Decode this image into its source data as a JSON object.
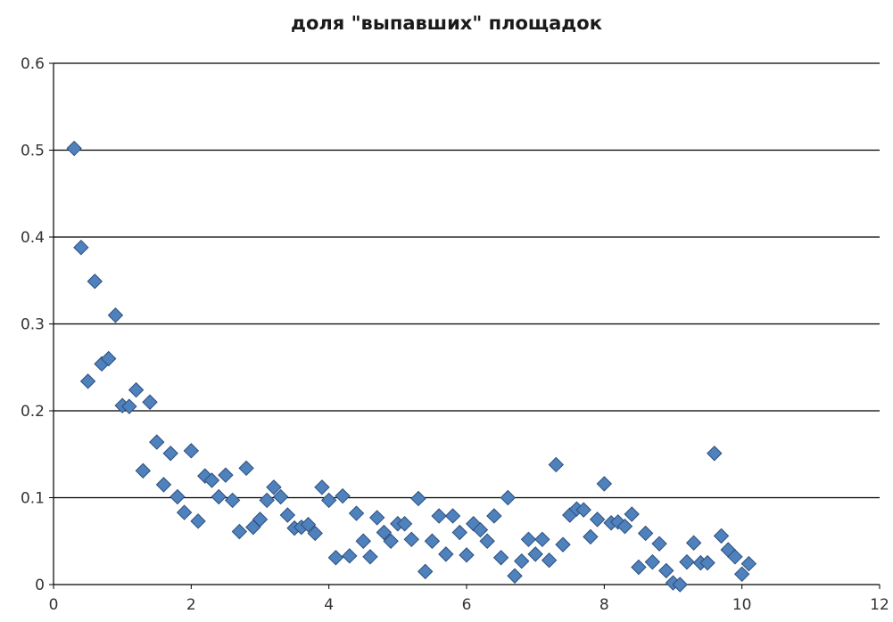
{
  "chart_data": {
    "type": "scatter",
    "title": "доля \"выпавших\" площадок",
    "xlabel": "",
    "ylabel": "",
    "xlim": [
      0,
      12
    ],
    "ylim": [
      0,
      0.6
    ],
    "x_ticks": [
      "0",
      "2",
      "4",
      "6",
      "8",
      "10",
      "12"
    ],
    "y_ticks": [
      "0",
      "0.1",
      "0.2",
      "0.3",
      "0.4",
      "0.5",
      "0.6"
    ],
    "grid": "horizontal",
    "legend": "none",
    "marker": "diamond",
    "colors": {
      "marker_fill": "#4f81bd",
      "marker_stroke": "#2c4f7c",
      "grid": "#000000",
      "axis": "#000000"
    },
    "series": [
      {
        "points": [
          [
            0.3,
            0.502
          ],
          [
            0.4,
            0.388
          ],
          [
            0.5,
            0.234
          ],
          [
            0.6,
            0.349
          ],
          [
            0.7,
            0.254
          ],
          [
            0.8,
            0.26
          ],
          [
            0.9,
            0.31
          ],
          [
            1.0,
            0.206
          ],
          [
            1.1,
            0.205
          ],
          [
            1.2,
            0.224
          ],
          [
            1.3,
            0.131
          ],
          [
            1.4,
            0.21
          ],
          [
            1.5,
            0.164
          ],
          [
            1.6,
            0.115
          ],
          [
            1.7,
            0.151
          ],
          [
            1.8,
            0.101
          ],
          [
            1.9,
            0.083
          ],
          [
            2.0,
            0.154
          ],
          [
            2.1,
            0.073
          ],
          [
            2.2,
            0.125
          ],
          [
            2.3,
            0.12
          ],
          [
            2.4,
            0.101
          ],
          [
            2.5,
            0.126
          ],
          [
            2.6,
            0.097
          ],
          [
            2.7,
            0.061
          ],
          [
            2.8,
            0.134
          ],
          [
            2.9,
            0.066
          ],
          [
            3.0,
            0.075
          ],
          [
            3.1,
            0.097
          ],
          [
            3.2,
            0.112
          ],
          [
            3.3,
            0.101
          ],
          [
            3.4,
            0.08
          ],
          [
            3.5,
            0.065
          ],
          [
            3.6,
            0.066
          ],
          [
            3.7,
            0.069
          ],
          [
            3.8,
            0.059
          ],
          [
            3.9,
            0.112
          ],
          [
            4.0,
            0.097
          ],
          [
            4.1,
            0.031
          ],
          [
            4.2,
            0.102
          ],
          [
            4.3,
            0.033
          ],
          [
            4.4,
            0.082
          ],
          [
            4.5,
            0.05
          ],
          [
            4.6,
            0.032
          ],
          [
            4.7,
            0.077
          ],
          [
            4.8,
            0.06
          ],
          [
            4.9,
            0.05
          ],
          [
            5.0,
            0.07
          ],
          [
            5.1,
            0.07
          ],
          [
            5.2,
            0.052
          ],
          [
            5.3,
            0.099
          ],
          [
            5.4,
            0.015
          ],
          [
            5.5,
            0.05
          ],
          [
            5.6,
            0.079
          ],
          [
            5.7,
            0.035
          ],
          [
            5.8,
            0.079
          ],
          [
            5.9,
            0.06
          ],
          [
            6.0,
            0.034
          ],
          [
            6.1,
            0.07
          ],
          [
            6.2,
            0.063
          ],
          [
            6.3,
            0.05
          ],
          [
            6.4,
            0.079
          ],
          [
            6.5,
            0.031
          ],
          [
            6.6,
            0.1
          ],
          [
            6.7,
            0.01
          ],
          [
            6.8,
            0.027
          ],
          [
            6.9,
            0.052
          ],
          [
            7.0,
            0.035
          ],
          [
            7.1,
            0.052
          ],
          [
            7.2,
            0.028
          ],
          [
            7.3,
            0.138
          ],
          [
            7.4,
            0.046
          ],
          [
            7.5,
            0.08
          ],
          [
            7.6,
            0.087
          ],
          [
            7.7,
            0.086
          ],
          [
            7.8,
            0.055
          ],
          [
            7.9,
            0.075
          ],
          [
            8.0,
            0.116
          ],
          [
            8.1,
            0.071
          ],
          [
            8.2,
            0.072
          ],
          [
            8.3,
            0.067
          ],
          [
            8.4,
            0.081
          ],
          [
            8.5,
            0.02
          ],
          [
            8.6,
            0.059
          ],
          [
            8.7,
            0.026
          ],
          [
            8.8,
            0.047
          ],
          [
            8.9,
            0.016
          ],
          [
            9.0,
            0.002
          ],
          [
            9.1,
            0.0
          ],
          [
            9.2,
            0.026
          ],
          [
            9.3,
            0.048
          ],
          [
            9.4,
            0.025
          ],
          [
            9.5,
            0.025
          ],
          [
            9.6,
            0.151
          ],
          [
            9.7,
            0.056
          ],
          [
            9.8,
            0.04
          ],
          [
            9.9,
            0.032
          ],
          [
            10.0,
            0.012
          ],
          [
            10.1,
            0.024
          ]
        ]
      }
    ]
  }
}
